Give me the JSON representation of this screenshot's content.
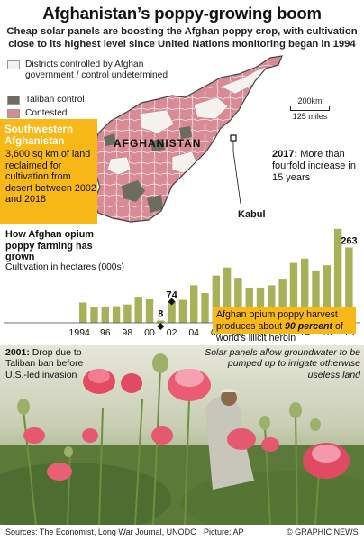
{
  "title": "Afghanistan’s poppy-growing boom",
  "subtitle": "Cheap solar panels are boosting the Afghan poppy crop, with cultivation close to its highest level since United Nations monitoring began in 1994",
  "legend": [
    {
      "label": "Districts controlled by Afghan government / control undetermined",
      "color": "#f5f1ec"
    },
    {
      "label": "Taliban control",
      "color": "#6c6c5f"
    },
    {
      "label": "Contested",
      "color": "#d98b95"
    }
  ],
  "scale": {
    "km": "200km",
    "miles": "125 miles"
  },
  "map": {
    "country": "AFGHANISTAN",
    "capital": "Kabul"
  },
  "southwest": {
    "heading": "Southwestern Afghanistan",
    "text": "3,600 sq km of land reclaimed for cultivation from desert between 2002 and 2018"
  },
  "notes": {
    "y2017_bold": "2017:",
    "y2017_text": "More than fourfold increase in 15 years",
    "heroin_pre": "Afghan opium poppy harvest produces about",
    "heroin_bold": "90 percent",
    "heroin_post": "of world’s illicit heroin",
    "y2001_bold": "2001:",
    "y2001_text": "Drop due to Taliban ban before U.S.-led invasion",
    "solar": "Solar panels allow groundwater to be pumped up to irrigate otherwise useless land"
  },
  "footer": {
    "sources": "Sources: The Economist, Long War Journal, UNODC",
    "picture": "Picture: AP",
    "credit": "© GRAPHIC NEWS"
  },
  "chart_data": {
    "type": "bar",
    "title": "How Afghan opium poppy farming has grown",
    "ylabel": "Cultivation in hectares (000s)",
    "x": [
      1994,
      1995,
      1996,
      1997,
      1998,
      1999,
      2000,
      2001,
      2002,
      2003,
      2004,
      2005,
      2006,
      2007,
      2008,
      2009,
      2010,
      2011,
      2012,
      2013,
      2014,
      2015,
      2016,
      2017,
      2018
    ],
    "tick_labels": [
      "1994",
      "96",
      "98",
      "00",
      "02",
      "04",
      "06",
      "08",
      "10",
      "12",
      "14",
      "16",
      "18"
    ],
    "values": [
      71,
      54,
      57,
      58,
      64,
      91,
      82,
      8,
      74,
      80,
      131,
      104,
      165,
      193,
      157,
      123,
      123,
      131,
      154,
      209,
      224,
      183,
      201,
      328,
      263
    ],
    "labeled": {
      "2001": "8",
      "2002": "74",
      "2017": "328",
      "2018": "263"
    },
    "ylim": [
      0,
      340
    ],
    "bar_color": "#a8b058",
    "highlight_color": "#f7b818"
  }
}
